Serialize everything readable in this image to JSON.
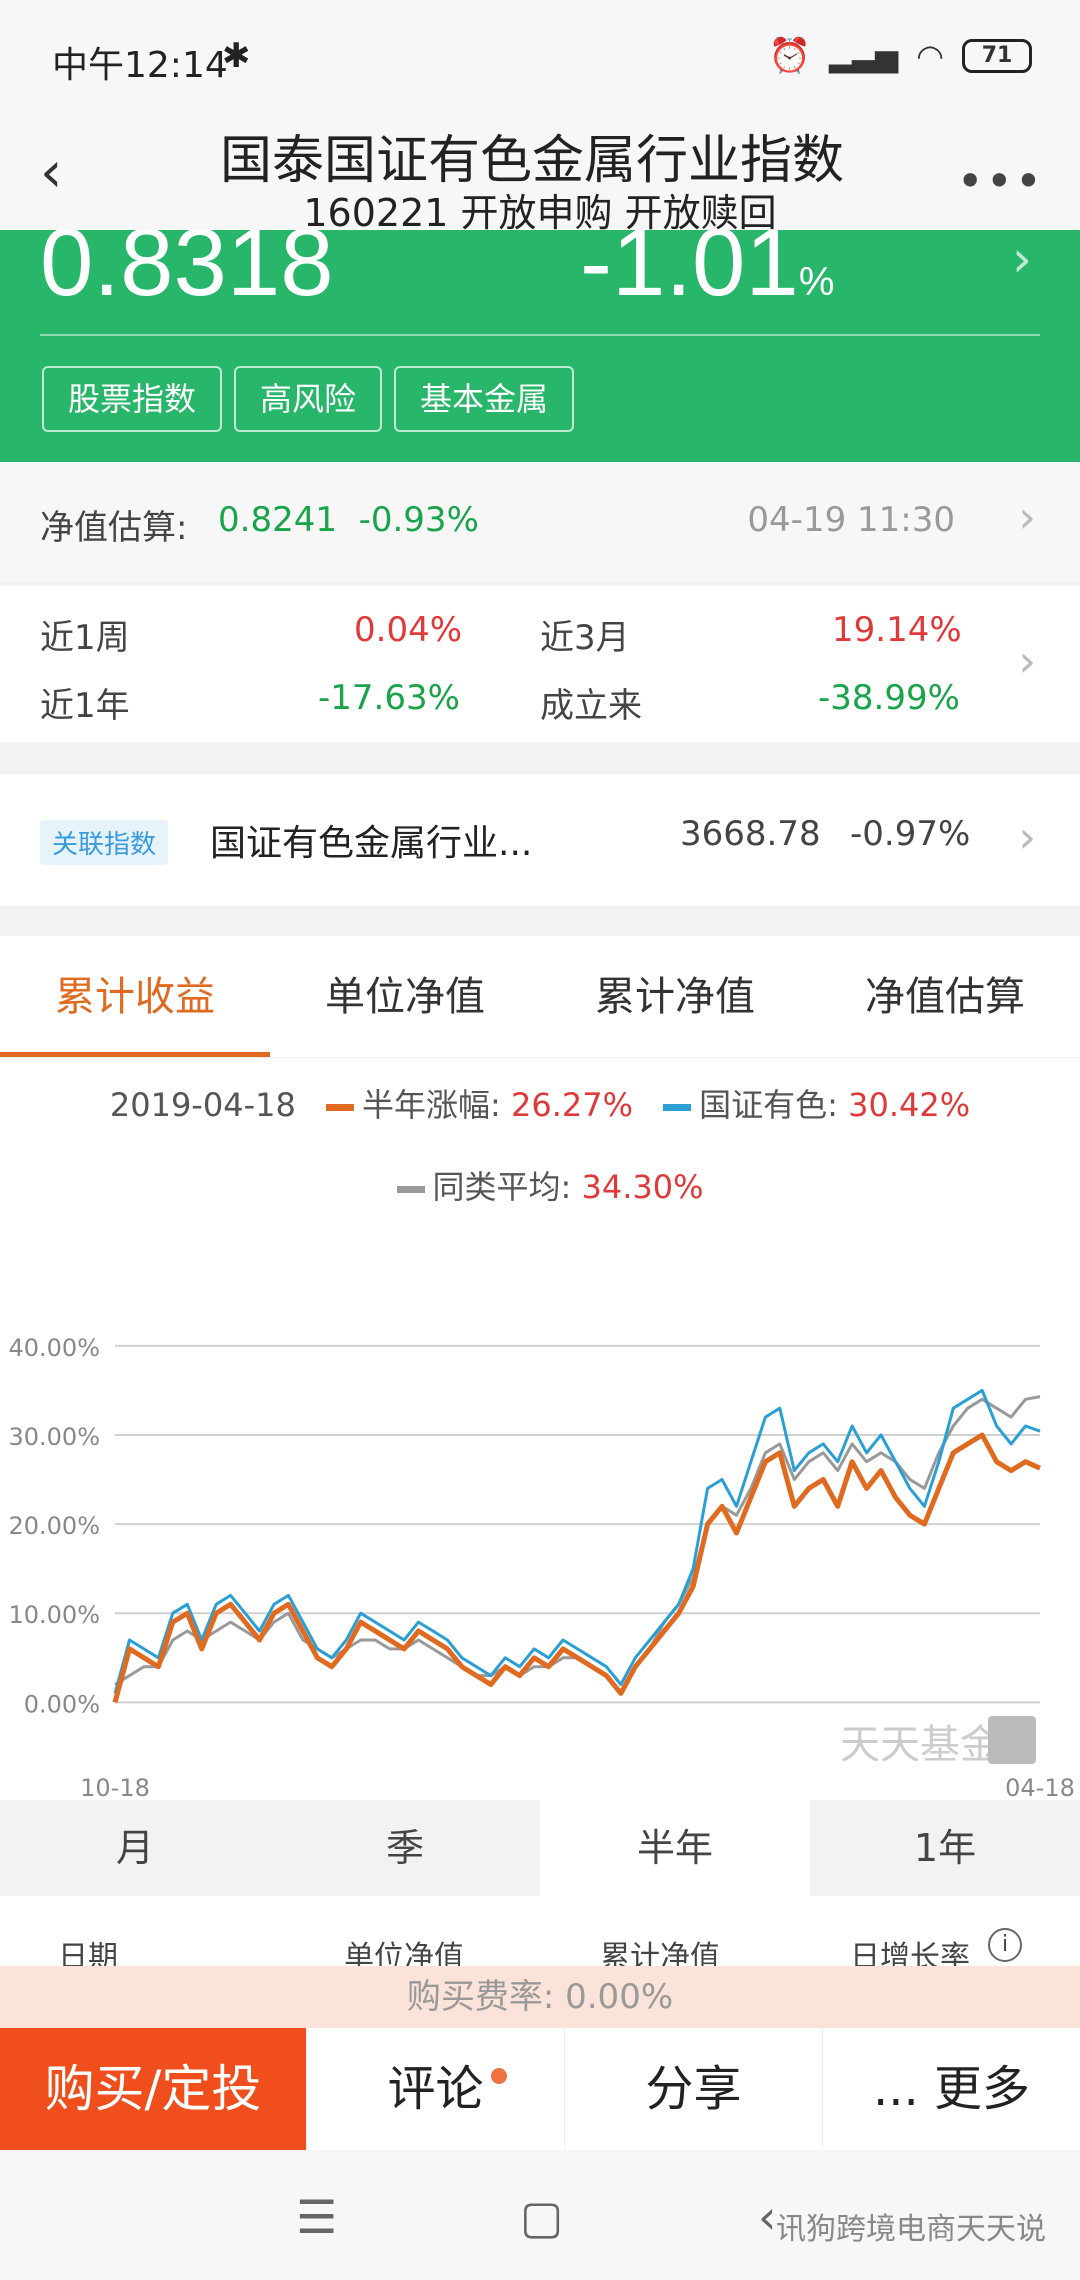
{
  "status": {
    "time": "中午12:14",
    "battery": "71"
  },
  "header": {
    "title": "国泰国证有色金属行业指数",
    "subtitle": "160221 开放申购 开放赎回"
  },
  "summary": {
    "nav": "0.8318",
    "change": "-1.01",
    "change_unit": "%",
    "tags": [
      "股票指数",
      "高风险",
      "基本金属"
    ]
  },
  "estimate": {
    "label": "净值估算:",
    "value": "0.8241",
    "change": "-0.93%",
    "time": "04-19 11:30"
  },
  "returns": {
    "w1_label": "近1周",
    "w1": "0.04%",
    "m3_label": "近3月",
    "m3": "19.14%",
    "y1_label": "近1年",
    "y1": "-17.63%",
    "since_label": "成立来",
    "since": "-38.99%"
  },
  "related": {
    "badge": "关联指数",
    "name": "国证有色金属行业...",
    "value": "3668.78",
    "change": "-0.97%"
  },
  "tabs": [
    "累计收益",
    "单位净值",
    "累计净值",
    "净值估算"
  ],
  "legend": {
    "date": "2019-04-18",
    "s1_name": "半年涨幅:",
    "s1_value": "26.27%",
    "s2_name": "国证有色:",
    "s2_value": "30.42%",
    "s3_name": "同类平均:",
    "s3_value": "34.30%"
  },
  "chart_data": {
    "type": "line",
    "ylim": [
      -4,
      42
    ],
    "yticks": [
      "40.00%",
      "30.00%",
      "20.00%",
      "10.00%",
      "0.00%"
    ],
    "x_start": "10-18",
    "x_end": "04-18",
    "watermark": "天天基金",
    "colors": {
      "fund": "#e06a20",
      "index": "#2a9fd6",
      "peer": "#999999"
    },
    "series": [
      {
        "name": "半年涨幅",
        "values": [
          0,
          6,
          5,
          4,
          9,
          10,
          6,
          10,
          11,
          9,
          7,
          10,
          11,
          8,
          5,
          4,
          6,
          9,
          8,
          7,
          6,
          8,
          7,
          6,
          4,
          3,
          2,
          4,
          3,
          5,
          4,
          6,
          5,
          4,
          3,
          1,
          4,
          6,
          8,
          10,
          13,
          20,
          22,
          19,
          23,
          27,
          28,
          22,
          24,
          25,
          22,
          27,
          24,
          26,
          23,
          21,
          20,
          24,
          28,
          29,
          30,
          27,
          26,
          27,
          26.27
        ]
      },
      {
        "name": "国证有色",
        "values": [
          1,
          7,
          6,
          5,
          10,
          11,
          7,
          11,
          12,
          10,
          8,
          11,
          12,
          9,
          6,
          5,
          7,
          10,
          9,
          8,
          7,
          9,
          8,
          7,
          5,
          4,
          3,
          5,
          4,
          6,
          5,
          7,
          6,
          5,
          4,
          2,
          5,
          7,
          9,
          11,
          15,
          24,
          25,
          22,
          27,
          32,
          33,
          26,
          28,
          29,
          27,
          31,
          28,
          30,
          27,
          24,
          22,
          27,
          33,
          34,
          35,
          31,
          29,
          31,
          30.42
        ]
      },
      {
        "name": "同类平均",
        "values": [
          2,
          3,
          4,
          4,
          7,
          8,
          7,
          8,
          9,
          8,
          7,
          9,
          10,
          7,
          6,
          5,
          6,
          7,
          7,
          6,
          6,
          7,
          6,
          5,
          4,
          3,
          3,
          4,
          3,
          4,
          4,
          5,
          5,
          4,
          3,
          1,
          4,
          6,
          9,
          11,
          14,
          20,
          22,
          21,
          24,
          28,
          29,
          25,
          27,
          28,
          26,
          29,
          27,
          28,
          27,
          25,
          24,
          28,
          31,
          33,
          34,
          33,
          32,
          34,
          34.3
        ]
      }
    ]
  },
  "periods": [
    "月",
    "季",
    "半年",
    "1年"
  ],
  "table_header": [
    "日期",
    "单位净值",
    "累计净值",
    "日增长率"
  ],
  "fee": "购买费率: 0.00%",
  "actions": {
    "buy": "购买/定投",
    "comment": "评论",
    "share": "分享",
    "more": "... 更多"
  },
  "watermark": "讯狗跨境电商天天说"
}
